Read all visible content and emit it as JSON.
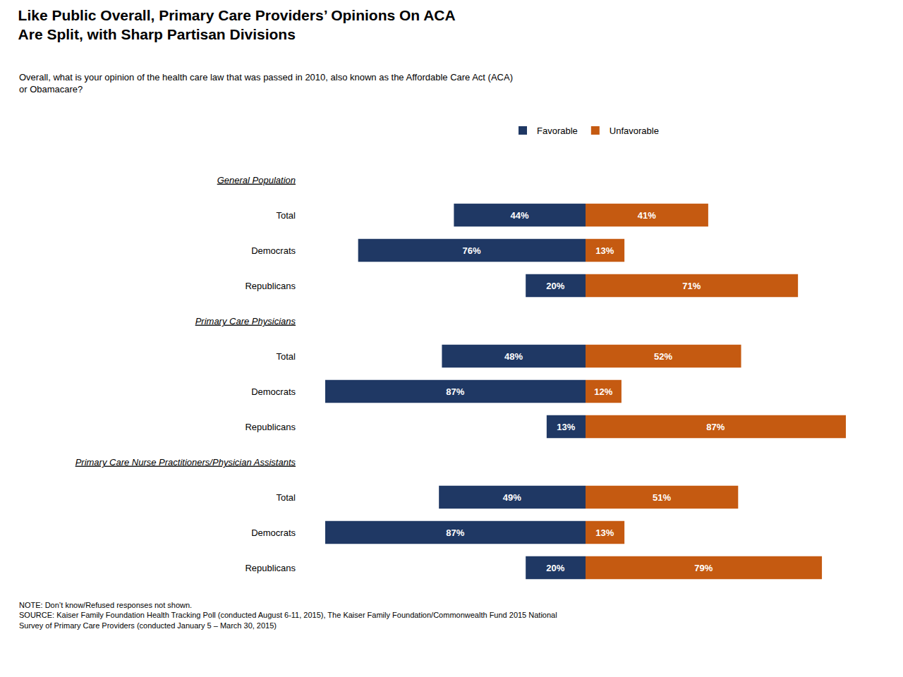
{
  "chart_data": {
    "type": "bar",
    "orientation": "horizontal",
    "title": "Like Public Overall, Primary Care Providers’ Opinions On ACA\nAre Split, with Sharp Partisan Divisions",
    "subtitle": "Overall, what is your opinion of the health care law that was passed in 2010, also known as the Affordable Care Act (ACA)\nor Obamacare?",
    "annotations": [
      "NOTE: Don’t know/Refused responses not shown.",
      "SOURCE: Kaiser Family Foundation Health Tracking Poll (conducted August 6-11, 2015), The Kaiser Family Foundation/Commonwealth Fund 2015 National",
      "Survey of Primary Care Providers (conducted January 5 – March 30, 2015)"
    ],
    "categories": [
      "General Population",
      "Total",
      "Democrats",
      "Republicans",
      "Primary Care Physicians",
      "Total",
      "Democrats",
      "Republicans",
      "Primary Care Nurse Practitioners/Physician Assistants",
      "Total",
      "Democrats",
      "Republicans"
    ],
    "series": [
      {
        "name": "Favorable",
        "color": "#1f3864",
        "values": [
          null,
          44,
          76,
          20,
          null,
          48,
          87,
          13,
          null,
          49,
          87,
          20
        ],
        "value_labels": [
          null,
          "44%",
          "76%",
          "20%",
          null,
          "48%",
          "87%",
          "13%",
          null,
          "49%",
          "87%",
          "20%"
        ]
      },
      {
        "name": "Unfavorable",
        "color": "#c55a11",
        "values": [
          null,
          41,
          13,
          71,
          null,
          52,
          12,
          87,
          null,
          51,
          13,
          79
        ],
        "value_labels": [
          null,
          "41%",
          "13%",
          "71%",
          null,
          "52%",
          "12%",
          "87%",
          null,
          "51%",
          "13%",
          "79%"
        ]
      }
    ],
    "data_labels": true,
    "tick_labels": "y",
    "grid": false,
    "legend": "top"
  }
}
